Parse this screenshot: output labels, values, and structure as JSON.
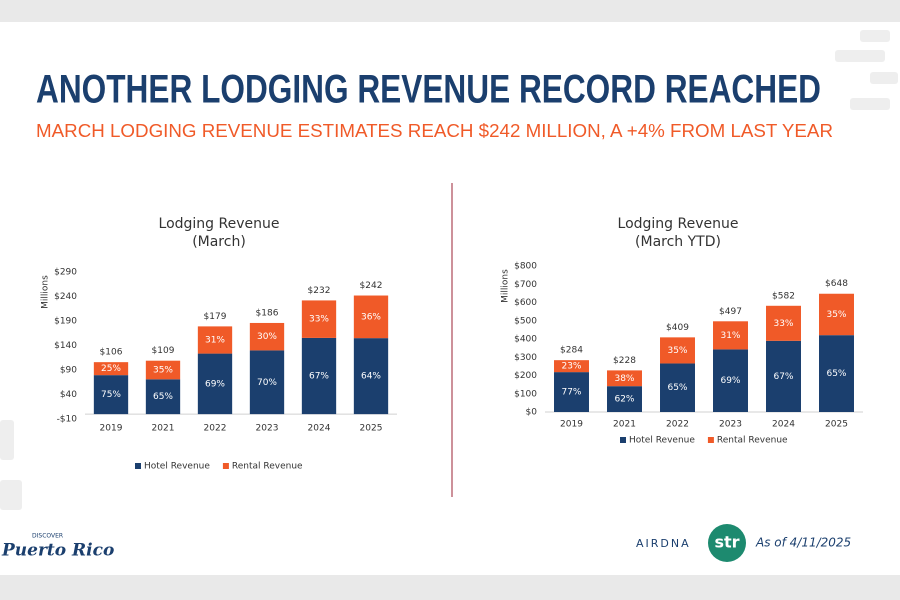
{
  "header": {
    "title": "ANOTHER LODGING REVENUE RECORD REACHED",
    "subtitle": "MARCH LODGING REVENUE ESTIMATES REACH $242 MILLION, A +4% FROM LAST YEAR"
  },
  "footer": {
    "logo_top": "DISCOVER",
    "logo": "Puerto Rico",
    "source1": "AIRDNA",
    "source2": "str",
    "date": "As of 4/11/2025"
  },
  "chart_data": [
    {
      "type": "stacked_bar",
      "title": "Lodging Revenue",
      "subtitle": "(March)",
      "y_label": "Millions",
      "categories": [
        "2019",
        "2021",
        "2022",
        "2023",
        "2024",
        "2025"
      ],
      "series": [
        {
          "name": "Hotel Revenue",
          "color": "#1b3f6e",
          "values": [
            79.5,
            71,
            123.5,
            130,
            155.5,
            155
          ],
          "shares": [
            "75%",
            "65%",
            "69%",
            "70%",
            "67%",
            "64%"
          ]
        },
        {
          "name": "Rental Revenue",
          "color": "#f05a28",
          "values": [
            26.5,
            38,
            55.5,
            56,
            76.5,
            87
          ],
          "shares": [
            "25%",
            "35%",
            "31%",
            "30%",
            "33%",
            "36%"
          ]
        }
      ],
      "total_labels": [
        "$106",
        "$109",
        "$179",
        "$186",
        "$232",
        "$242"
      ],
      "ylim": [
        -10,
        290
      ],
      "yticks": [
        {
          "value": -10,
          "label": "-$10"
        },
        {
          "value": 40,
          "label": "$40"
        },
        {
          "value": 90,
          "label": "$90"
        },
        {
          "value": 140,
          "label": "$140"
        },
        {
          "value": 190,
          "label": "$190"
        },
        {
          "value": 240,
          "label": "$240"
        },
        {
          "value": 290,
          "label": "$290"
        }
      ],
      "legend": "bottom"
    },
    {
      "type": "stacked_bar",
      "title": "Lodging Revenue",
      "subtitle": "(March YTD)",
      "y_label": "Millions",
      "categories": [
        "2019",
        "2021",
        "2022",
        "2023",
        "2024",
        "2025"
      ],
      "series": [
        {
          "name": "Hotel Revenue",
          "color": "#1b3f6e",
          "values": [
            218.5,
            141.5,
            266,
            343,
            390,
            421
          ],
          "shares": [
            "77%",
            "62%",
            "65%",
            "69%",
            "67%",
            "65%"
          ]
        },
        {
          "name": "Rental Revenue",
          "color": "#f05a28",
          "values": [
            65.5,
            86.5,
            143,
            154,
            192,
            227
          ],
          "shares": [
            "23%",
            "38%",
            "35%",
            "31%",
            "33%",
            "35%"
          ]
        }
      ],
      "total_labels": [
        "$284",
        "$228",
        "$409",
        "$497",
        "$582",
        "$648"
      ],
      "ylim": [
        0,
        800
      ],
      "yticks": [
        {
          "value": 0,
          "label": "$0"
        },
        {
          "value": 100,
          "label": "$100"
        },
        {
          "value": 200,
          "label": "$200"
        },
        {
          "value": 300,
          "label": "$300"
        },
        {
          "value": 400,
          "label": "$400"
        },
        {
          "value": 500,
          "label": "$500"
        },
        {
          "value": 600,
          "label": "$600"
        },
        {
          "value": 700,
          "label": "$700"
        },
        {
          "value": 800,
          "label": "$800"
        }
      ],
      "legend": "bottom"
    }
  ]
}
